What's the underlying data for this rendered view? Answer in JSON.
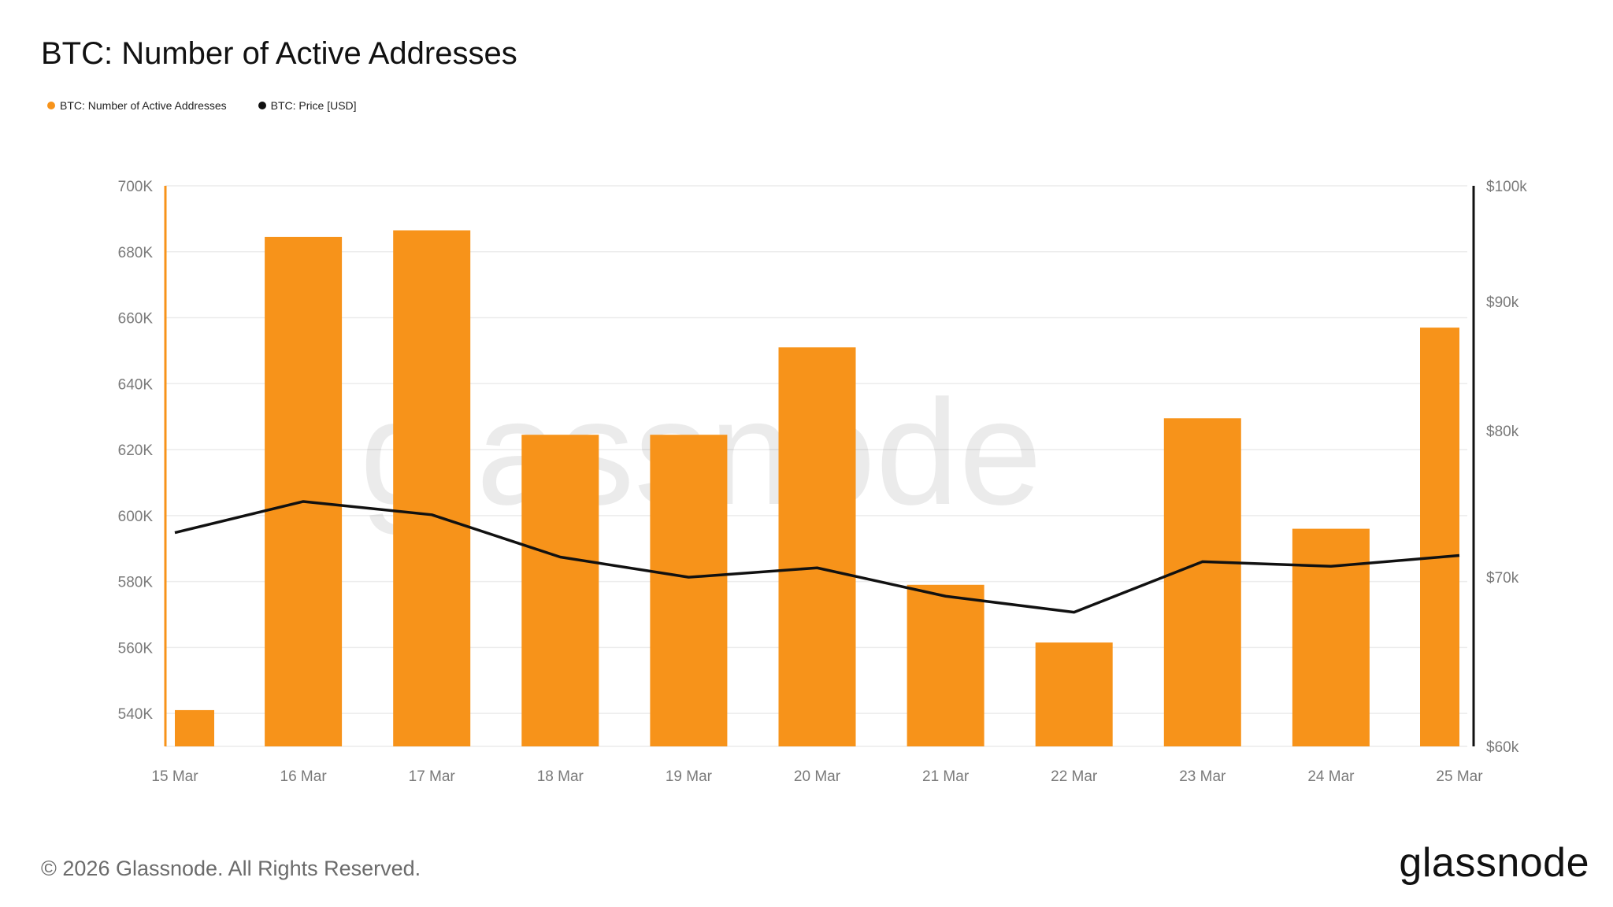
{
  "title": "BTC: Number of Active Addresses",
  "legend": [
    {
      "label": "BTC: Number of Active Addresses",
      "color": "#f7931a"
    },
    {
      "label": "BTC: Price [USD]",
      "color": "#111111"
    }
  ],
  "watermark": "glassnode",
  "footer": "© 2026 Glassnode. All Rights Reserved.",
  "brand": "glassnode",
  "chart_data": {
    "type": "bar",
    "categories": [
      "15 Mar",
      "16 Mar",
      "17 Mar",
      "18 Mar",
      "19 Mar",
      "20 Mar",
      "21 Mar",
      "22 Mar",
      "23 Mar",
      "24 Mar",
      "25 Mar"
    ],
    "series": [
      {
        "name": "BTC: Number of Active Addresses",
        "type": "bar",
        "axis": "left",
        "color": "#f7931a",
        "values": [
          541000,
          684500,
          686500,
          624500,
          624500,
          651000,
          579000,
          561500,
          629500,
          596000,
          657000
        ]
      },
      {
        "name": "BTC: Price [USD]",
        "type": "line",
        "axis": "right",
        "color": "#111111",
        "values": [
          72900,
          75000,
          74100,
          71300,
          70000,
          70600,
          68800,
          67800,
          71000,
          70700,
          71400
        ]
      }
    ],
    "left_axis": {
      "ticks": [
        "540K",
        "560K",
        "580K",
        "600K",
        "620K",
        "640K",
        "660K",
        "680K",
        "700K"
      ],
      "tick_values": [
        540000,
        560000,
        580000,
        600000,
        620000,
        640000,
        660000,
        680000,
        700000
      ],
      "ylim": [
        530000,
        700000
      ]
    },
    "right_axis": {
      "ticks": [
        "$60k",
        "$70k",
        "$80k",
        "$90k",
        "$100k"
      ],
      "tick_values": [
        60000,
        70000,
        80000,
        90000,
        100000
      ],
      "scale": "log",
      "ylim": [
        60000,
        100000
      ]
    },
    "grid": true,
    "legend_position": "top-left"
  }
}
